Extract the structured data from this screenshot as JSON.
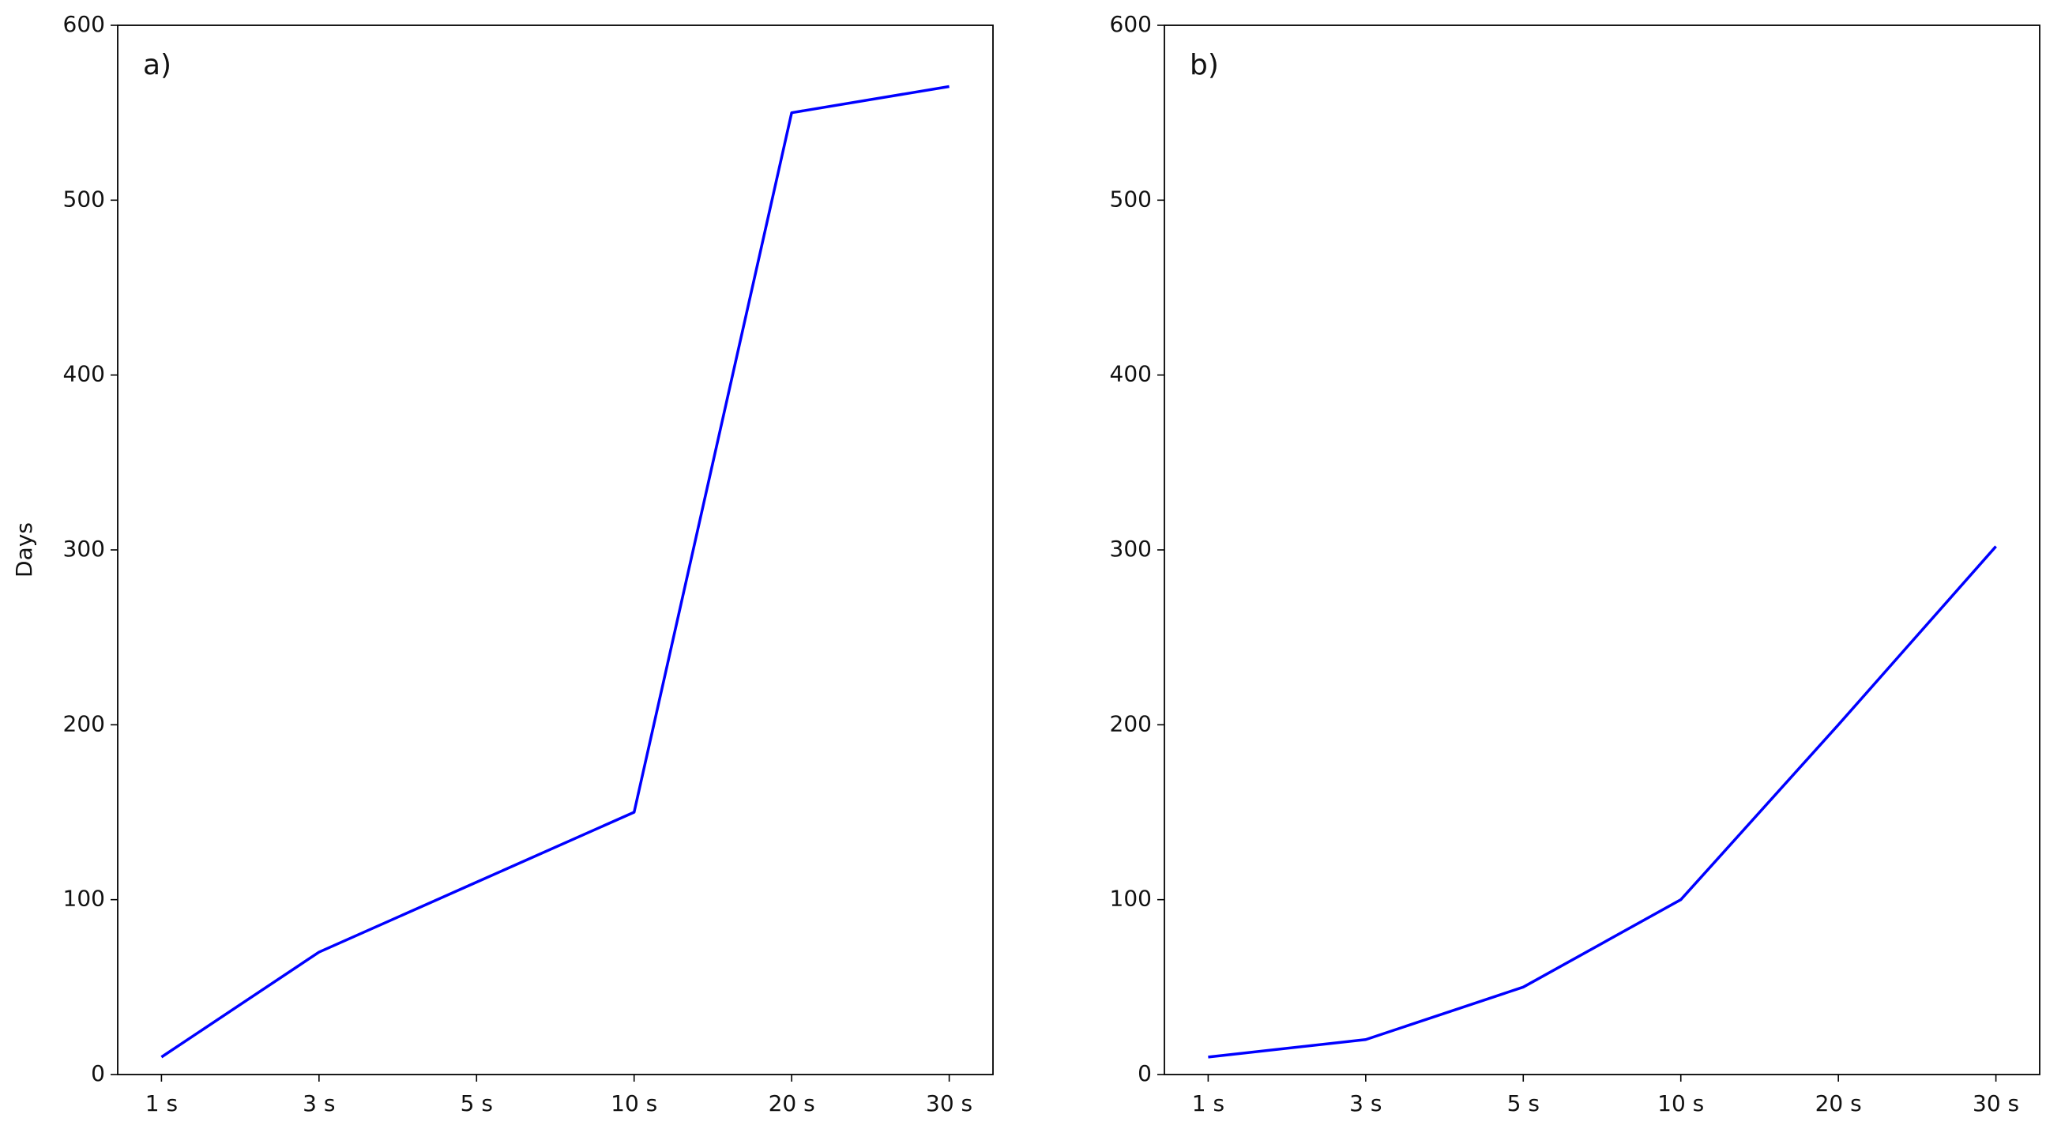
{
  "chart_data": [
    {
      "type": "line",
      "annotation": "a)",
      "ylabel": "Days",
      "categories": [
        "1 s",
        "3 s",
        "5 s",
        "10 s",
        "20 s",
        "30 s"
      ],
      "series": [
        {
          "color": "#0000ff",
          "values": [
            10,
            70,
            110,
            150,
            550,
            565
          ]
        }
      ],
      "ylim": [
        0,
        600
      ],
      "yticks": [
        0,
        100,
        200,
        300,
        400,
        500,
        600
      ],
      "grid": false
    },
    {
      "type": "line",
      "annotation": "b)",
      "categories": [
        "1 s",
        "3 s",
        "5 s",
        "10 s",
        "20 s",
        "30 s"
      ],
      "series": [
        {
          "color": "#0000ff",
          "values": [
            10,
            20,
            50,
            100,
            200,
            302
          ]
        }
      ],
      "ylim": [
        0,
        600
      ],
      "yticks": [
        0,
        100,
        200,
        300,
        400,
        500,
        600
      ],
      "grid": false
    }
  ]
}
